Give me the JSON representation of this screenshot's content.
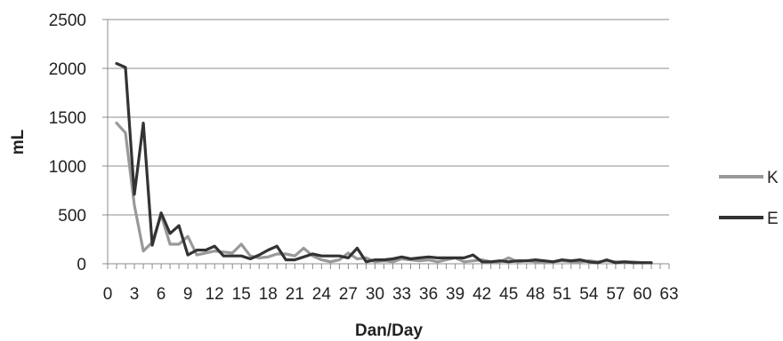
{
  "chart_data": {
    "type": "line",
    "title": "",
    "xlabel": "Dan/Day",
    "ylabel": "mL",
    "xlim": [
      0,
      63
    ],
    "ylim": [
      0,
      2500
    ],
    "x_ticks": [
      0,
      3,
      6,
      9,
      12,
      15,
      18,
      21,
      24,
      27,
      30,
      33,
      36,
      39,
      42,
      45,
      48,
      51,
      54,
      57,
      60,
      63
    ],
    "x_tick_labels": [
      "0",
      "3",
      "6",
      "9",
      "12",
      "15",
      "18",
      "21",
      "24",
      "27",
      "30",
      "33",
      "36",
      "39",
      "42",
      "45",
      "48",
      "51",
      "54",
      "57",
      "60",
      "63"
    ],
    "y_ticks": [
      0,
      500,
      1000,
      1500,
      2000,
      2500
    ],
    "y_tick_labels": [
      "0",
      "500",
      "1000",
      "1500",
      "2000",
      "2500"
    ],
    "grid": "horizontal",
    "legend_position": "right",
    "series": [
      {
        "name": "K",
        "color": "#999999",
        "x": [
          1,
          2,
          3,
          4,
          5,
          6,
          7,
          8,
          9,
          10,
          11,
          12,
          13,
          14,
          15,
          16,
          17,
          18,
          19,
          20,
          21,
          22,
          23,
          24,
          25,
          26,
          27,
          28,
          29,
          30,
          31,
          32,
          33,
          34,
          35,
          36,
          37,
          38,
          39,
          40,
          41,
          42,
          43,
          44,
          45,
          46,
          47,
          48,
          49,
          50,
          51,
          52,
          53,
          54,
          55,
          56,
          57,
          58,
          59,
          60,
          61
        ],
        "values": [
          1440,
          1340,
          600,
          130,
          220,
          500,
          200,
          200,
          280,
          90,
          110,
          130,
          120,
          110,
          200,
          80,
          60,
          70,
          100,
          100,
          80,
          160,
          80,
          40,
          20,
          40,
          110,
          50,
          60,
          20,
          30,
          20,
          50,
          40,
          30,
          40,
          20,
          40,
          60,
          20,
          30,
          40,
          20,
          20,
          60,
          20,
          30,
          20,
          20,
          20,
          30,
          20,
          20,
          30,
          20,
          30,
          20,
          20,
          20,
          10,
          10
        ]
      },
      {
        "name": "E",
        "color": "#333333",
        "x": [
          1,
          2,
          3,
          4,
          5,
          6,
          7,
          8,
          9,
          10,
          11,
          12,
          13,
          14,
          15,
          16,
          17,
          18,
          19,
          20,
          21,
          22,
          23,
          24,
          25,
          26,
          27,
          28,
          29,
          30,
          31,
          32,
          33,
          34,
          35,
          36,
          37,
          38,
          39,
          40,
          41,
          42,
          43,
          44,
          45,
          46,
          47,
          48,
          49,
          50,
          51,
          52,
          53,
          54,
          55,
          56,
          57,
          58,
          59,
          60,
          61
        ],
        "values": [
          2050,
          2010,
          710,
          1440,
          190,
          520,
          310,
          390,
          90,
          140,
          140,
          180,
          80,
          80,
          80,
          50,
          90,
          140,
          180,
          40,
          40,
          70,
          100,
          80,
          80,
          80,
          60,
          160,
          20,
          40,
          40,
          50,
          70,
          50,
          60,
          70,
          60,
          60,
          60,
          60,
          90,
          20,
          20,
          30,
          20,
          30,
          30,
          40,
          30,
          20,
          40,
          30,
          40,
          20,
          10,
          40,
          10,
          20,
          10,
          10,
          10
        ]
      }
    ]
  }
}
